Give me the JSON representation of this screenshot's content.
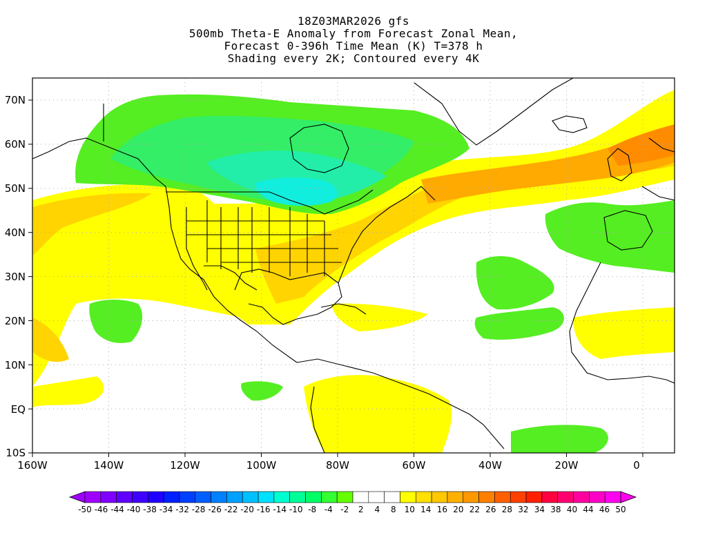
{
  "titles": [
    "18Z03MAR2026 gfs",
    "500mb Theta-E Anomaly from Forecast Zonal Mean,",
    "Forecast 0-396h Time Mean (K) T=378 h",
    "Shading every 2K; Contoured every 4K"
  ],
  "map": {
    "lon_labels": [
      "160W",
      "140W",
      "120W",
      "100W",
      "80W",
      "60W",
      "40W",
      "20W",
      "0"
    ],
    "lat_labels": [
      "70N",
      "60N",
      "50N",
      "40N",
      "30N",
      "20N",
      "10N",
      "EQ",
      "10S"
    ],
    "colors": {
      "yellow": "#ffff00",
      "light_orange": "#ffd400",
      "orange": "#ffaa00",
      "dark_orange": "#ff8c00",
      "green": "#55ee22",
      "mid_green": "#33ee66",
      "teal_green": "#22eeaa",
      "cyan": "#11eedd"
    }
  },
  "colorbar": {
    "labels": [
      "-50",
      "-46",
      "-44",
      "-40",
      "-38",
      "-34",
      "-32",
      "-28",
      "-26",
      "-22",
      "-20",
      "-16",
      "-14",
      "-10",
      "-8",
      "-4",
      "-2",
      "2",
      "4",
      "8",
      "10",
      "14",
      "16",
      "20",
      "22",
      "26",
      "28",
      "32",
      "34",
      "38",
      "40",
      "44",
      "46",
      "50"
    ],
    "colors": [
      "#a000ff",
      "#8000ff",
      "#6000ff",
      "#4000ff",
      "#2000ff",
      "#0020ff",
      "#0040ff",
      "#0060ff",
      "#0080ff",
      "#00a0ff",
      "#00c0ff",
      "#00e0ff",
      "#00ffd0",
      "#00ff99",
      "#00ff66",
      "#33ff33",
      "#66ff00",
      "#ffffff",
      "#ffffff",
      "#ffffff",
      "#ffff00",
      "#ffe000",
      "#ffc800",
      "#ffb000",
      "#ff9800",
      "#ff8000",
      "#ff6000",
      "#ff4000",
      "#ff2000",
      "#ff0040",
      "#ff0070",
      "#ff00a0",
      "#ff00c8",
      "#ff00f0"
    ]
  }
}
